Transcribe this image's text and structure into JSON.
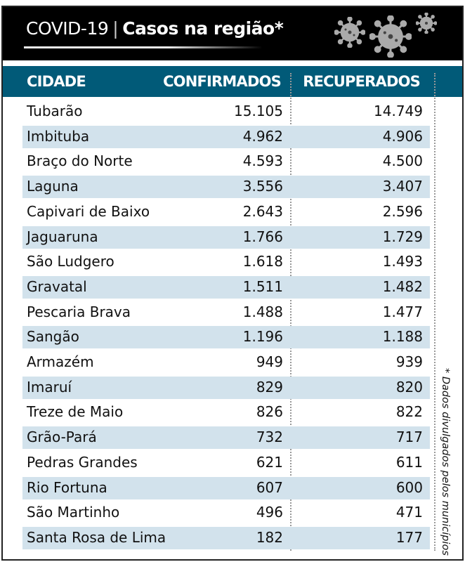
{
  "header": {
    "title_prefix": "COVID-19",
    "title_separator": "|",
    "title_main": "Casos na região*",
    "icon": "coronavirus-icon"
  },
  "table": {
    "columns": [
      "CIDADE",
      "CONFIRMADOS",
      "RECUPERADOS"
    ],
    "rows": [
      {
        "city": "Tubarão",
        "confirmed": "15.105",
        "recovered": "14.749"
      },
      {
        "city": "Imbituba",
        "confirmed": "4.962",
        "recovered": "4.906"
      },
      {
        "city": "Braço do Norte",
        "confirmed": "4.593",
        "recovered": "4.500"
      },
      {
        "city": "Laguna",
        "confirmed": "3.556",
        "recovered": "3.407"
      },
      {
        "city": "Capivari de Baixo",
        "confirmed": "2.643",
        "recovered": "2.596"
      },
      {
        "city": "Jaguaruna",
        "confirmed": "1.766",
        "recovered": "1.729"
      },
      {
        "city": "São Ludgero",
        "confirmed": "1.618",
        "recovered": "1.493"
      },
      {
        "city": "Gravatal",
        "confirmed": "1.511",
        "recovered": "1.482"
      },
      {
        "city": "Pescaria Brava",
        "confirmed": "1.488",
        "recovered": "1.477"
      },
      {
        "city": "Sangão",
        "confirmed": "1.196",
        "recovered": "1.188"
      },
      {
        "city": "Armazém",
        "confirmed": "949",
        "recovered": "939"
      },
      {
        "city": "Imaruí",
        "confirmed": "829",
        "recovered": "820"
      },
      {
        "city": "Treze de Maio",
        "confirmed": "826",
        "recovered": "822"
      },
      {
        "city": "Grão-Pará",
        "confirmed": "732",
        "recovered": "717"
      },
      {
        "city": "Pedras Grandes",
        "confirmed": "621",
        "recovered": "611"
      },
      {
        "city": "Rio Fortuna",
        "confirmed": "607",
        "recovered": "600"
      },
      {
        "city": "São Martinho",
        "confirmed": "496",
        "recovered": "471"
      },
      {
        "city": "Santa Rosa de Lima",
        "confirmed": "182",
        "recovered": "177"
      }
    ]
  },
  "footnote": "* Dados divulgados pelos municípios",
  "colors": {
    "header_bg": "#000000",
    "table_header": "#015a78",
    "stripe": "#d2e2ec"
  }
}
